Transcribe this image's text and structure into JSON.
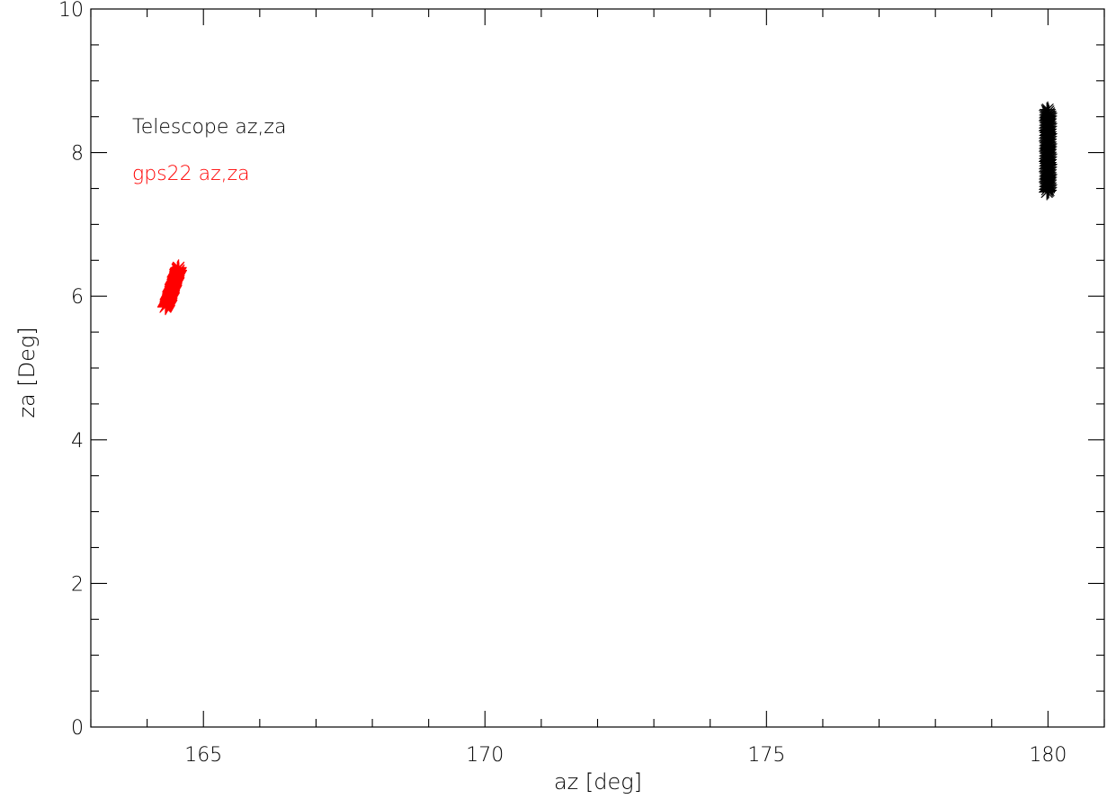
{
  "chart_data": {
    "type": "scatter",
    "xlabel": "az [deg]",
    "ylabel": "za [Deg]",
    "xlim": [
      163,
      181
    ],
    "ylim": [
      0,
      10
    ],
    "x_ticks": [
      165,
      170,
      175,
      180
    ],
    "y_ticks": [
      0,
      2,
      4,
      6,
      8,
      10
    ],
    "x_minor_step": 1,
    "y_minor_step": 0.5,
    "grid": false,
    "legend_position": "top-left",
    "series": [
      {
        "name": "Telescope az,za",
        "color": "#000000",
        "marker": "asterisk",
        "cluster": {
          "x_range": [
            179.98,
            180.02
          ],
          "y_range": [
            7.45,
            8.6
          ]
        }
      },
      {
        "name": "gps22 az,za",
        "color": "#ff0000",
        "marker": "asterisk",
        "cluster": {
          "x_range": [
            164.3,
            164.6
          ],
          "y_range": [
            5.85,
            6.4
          ]
        }
      }
    ]
  }
}
